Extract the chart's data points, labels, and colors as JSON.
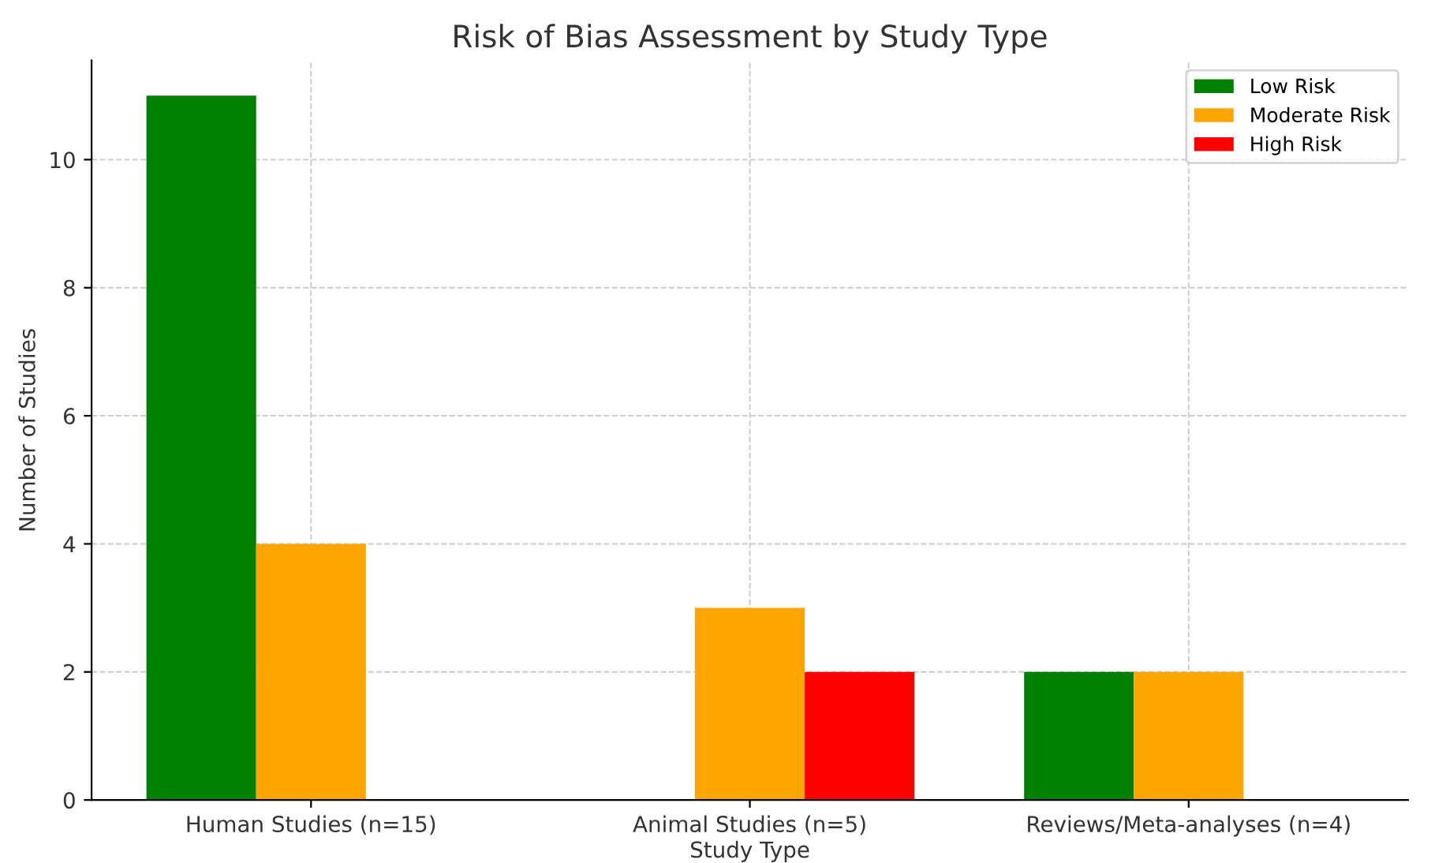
{
  "chart_data": {
    "type": "bar",
    "title": "Risk of Bias Assessment by Study Type",
    "xlabel": "Study Type",
    "ylabel": "Number of Studies",
    "categories": [
      "Human Studies (n=15)",
      "Animal Studies (n=5)",
      "Reviews/Meta-analyses (n=4)"
    ],
    "series": [
      {
        "name": "Low Risk",
        "color": "#008000",
        "values": [
          11,
          0,
          2
        ]
      },
      {
        "name": "Moderate Risk",
        "color": "#ffa500",
        "values": [
          4,
          3,
          2
        ]
      },
      {
        "name": "High Risk",
        "color": "#ff0000",
        "values": [
          0,
          2,
          0
        ]
      }
    ],
    "ylim": [
      0,
      11.55
    ],
    "yticks": [
      0,
      2,
      4,
      6,
      8,
      10
    ],
    "grid": true,
    "legend": "top right"
  }
}
